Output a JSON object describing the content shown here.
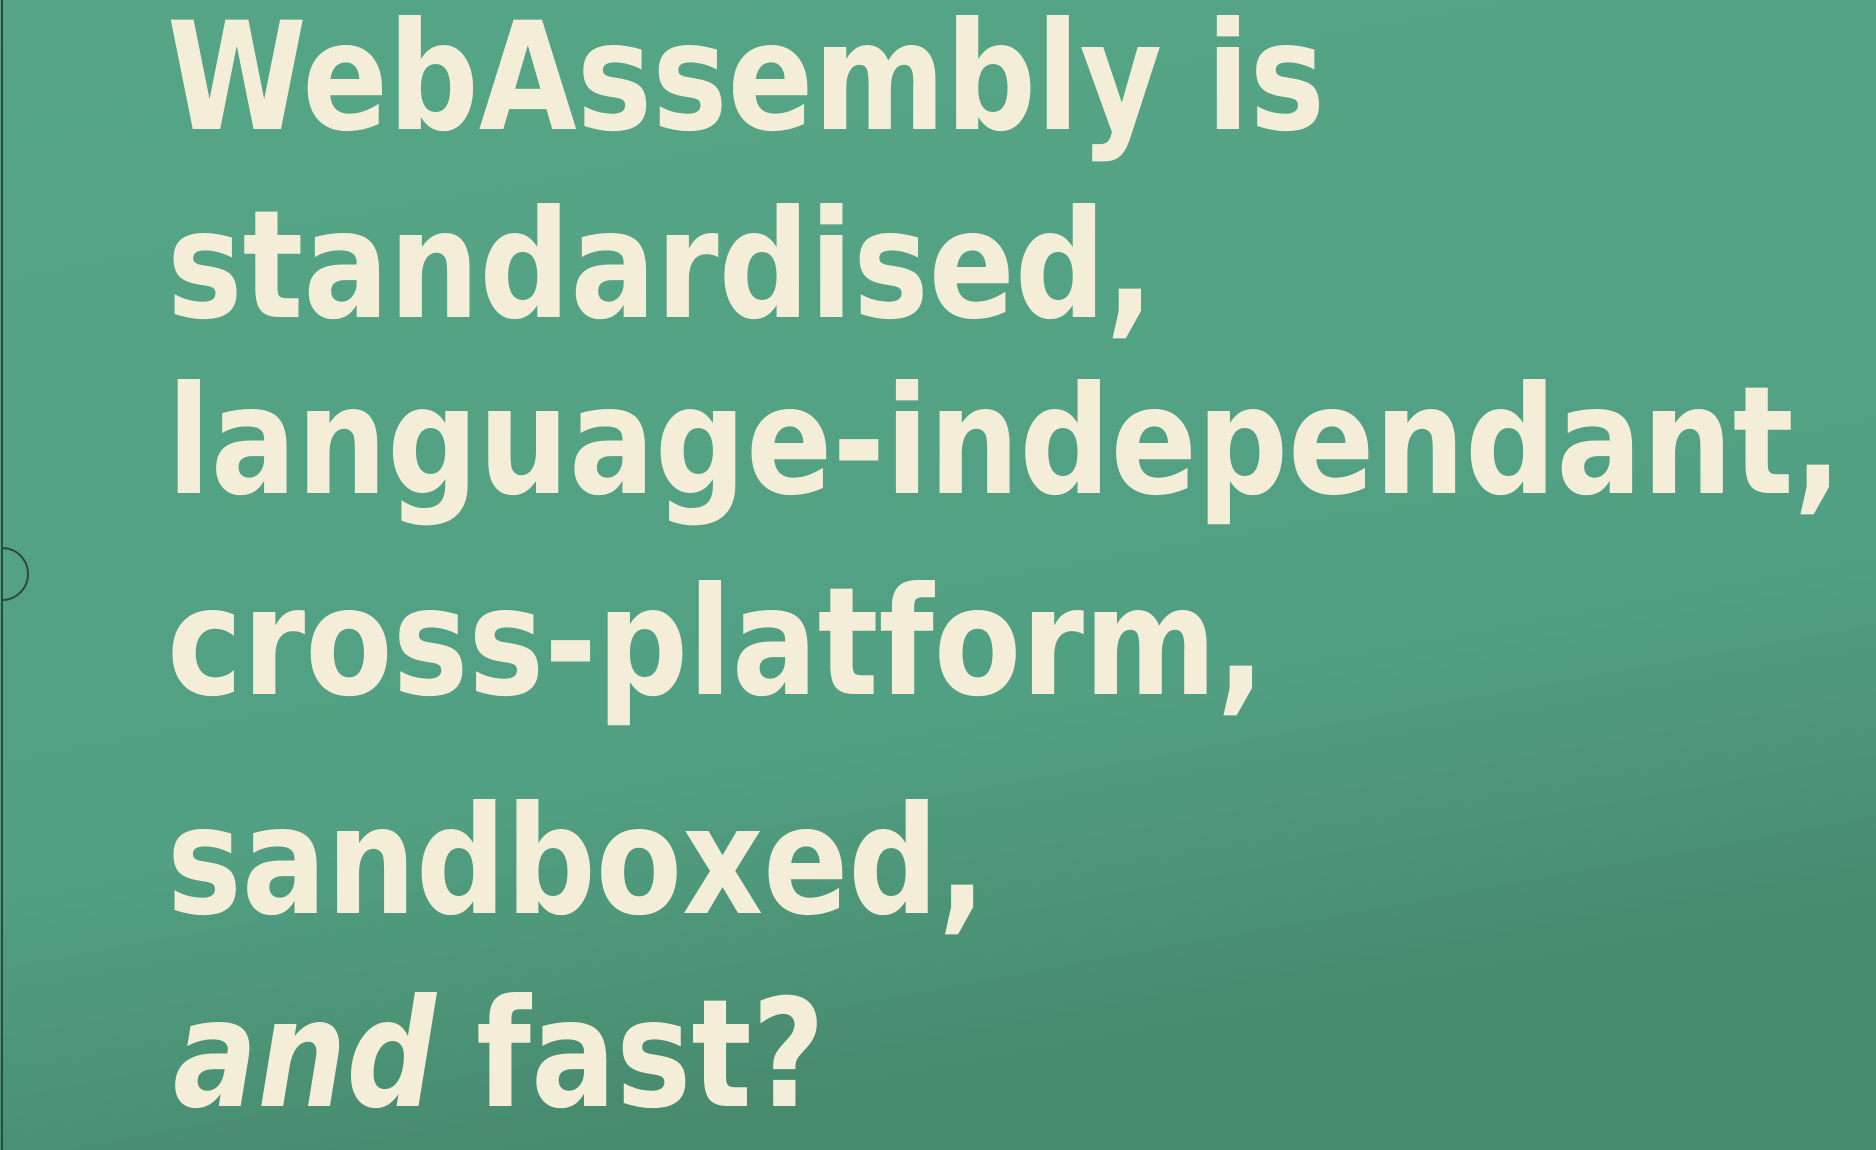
{
  "slide": {
    "lines": [
      "WebAssembly is",
      "standardised,",
      "language-independant,",
      "cross-platform,",
      "sandboxed,"
    ],
    "last_line": {
      "emphasis": "and",
      "text": "fast?"
    }
  }
}
